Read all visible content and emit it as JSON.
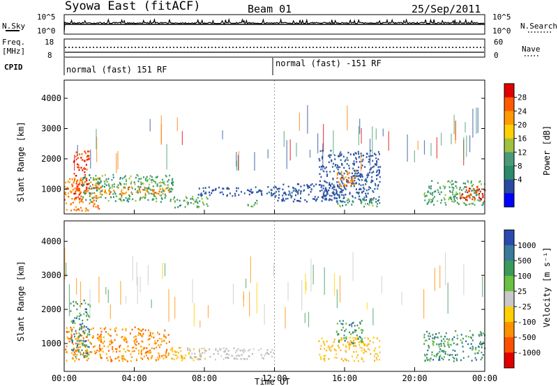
{
  "header": {
    "station": "Syowa East (fitACF)",
    "beam": "Beam 01",
    "date": "25/Sep/2011"
  },
  "status_panels": {
    "nsky_label": "N.Sky",
    "nsky_top": "10^5",
    "nsky_bottom": "10^0",
    "nsearch_label": "N.Search",
    "nsearch_top": "10^5",
    "nsearch_bottom": "10^0",
    "freq_label_1": "Freq.",
    "freq_label_2": "[MHz]",
    "freq_top": "18",
    "freq_bottom": "8",
    "nave_label": "Nave",
    "nave_top": "60",
    "nave_bottom": "0",
    "cpid_label": "CPID",
    "cpid_first": "normal (fast) 151 RF",
    "cpid_second": "normal (fast) -151 RF"
  },
  "chart_data": [
    {
      "type": "heatmap",
      "name": "Power panel",
      "ylabel": "Slant Range [km]",
      "yticks": [
        "1000",
        "2000",
        "3000",
        "4000"
      ],
      "ylim": [
        180,
        4600
      ],
      "xlim_hours": [
        0,
        24
      ],
      "xticks": [
        "00:00",
        "04:00",
        "08:00",
        "12:00",
        "16:00",
        "20:00",
        "00:00"
      ],
      "colorbar_label": "Power [dB]",
      "colorbar_ticks": [
        "28",
        "24",
        "20",
        "16",
        "12",
        "8",
        "4"
      ],
      "colorbar_colors": [
        "#e00000",
        "#ff5a00",
        "#ff9a00",
        "#ffd000",
        "#a0c040",
        "#4a9a7a",
        "#2a8a6a",
        "#2a4aa0",
        "#0000ff"
      ],
      "blobs": [
        {
          "t0": 0.0,
          "t1": 2.0,
          "r0": 300,
          "r1": 1400,
          "level": "orange"
        },
        {
          "t0": 0.5,
          "t1": 1.4,
          "r0": 700,
          "r1": 2300,
          "level": "red"
        },
        {
          "t0": 1.0,
          "t1": 6.2,
          "r0": 600,
          "r1": 1500,
          "level": "green"
        },
        {
          "t0": 2.0,
          "t1": 6.0,
          "r0": 850,
          "r1": 1100,
          "level": "orange"
        },
        {
          "t0": 6.2,
          "t1": 8.2,
          "r0": 400,
          "r1": 800,
          "level": "green"
        },
        {
          "t0": 7.5,
          "t1": 12.0,
          "r0": 800,
          "r1": 1100,
          "level": "blue"
        },
        {
          "t0": 10.3,
          "t1": 11.0,
          "r0": 450,
          "r1": 650,
          "level": "green"
        },
        {
          "t0": 12.0,
          "t1": 16.0,
          "r0": 600,
          "r1": 1200,
          "level": "blue"
        },
        {
          "t0": 14.5,
          "t1": 18.0,
          "r0": 600,
          "r1": 2300,
          "level": "blue"
        },
        {
          "t0": 15.5,
          "t1": 16.7,
          "r0": 1100,
          "r1": 1600,
          "level": "orange"
        },
        {
          "t0": 15.5,
          "t1": 18.0,
          "r0": 450,
          "r1": 700,
          "level": "green"
        },
        {
          "t0": 20.5,
          "t1": 24.0,
          "r0": 500,
          "r1": 1300,
          "level": "green"
        },
        {
          "t0": 22.5,
          "t1": 24.0,
          "r0": 600,
          "r1": 1100,
          "level": "red"
        }
      ]
    },
    {
      "type": "heatmap",
      "name": "Velocity panel",
      "ylabel": "Slant Range [km]",
      "yticks": [
        "1000",
        "2000",
        "3000",
        "4000"
      ],
      "ylim": [
        180,
        4600
      ],
      "xlim_hours": [
        0,
        24
      ],
      "xticks": [
        "00:00",
        "04:00",
        "08:00",
        "12:00",
        "16:00",
        "20:00",
        "00:00"
      ],
      "xlabel": "Time UT",
      "colorbar_label": "Velocity [m s⁻¹]",
      "colorbar_ticks": [
        "1000",
        "500",
        "100",
        "25",
        "-25",
        "-100",
        "-500",
        "-1000"
      ],
      "colorbar_colors": [
        "#2a4ab0",
        "#3a7a9a",
        "#3a9a5a",
        "#6ac040",
        "#c8c8c8",
        "#ffd000",
        "#ff9000",
        "#ff5000",
        "#e00000"
      ],
      "blobs": [
        {
          "t0": 0.0,
          "t1": 6.0,
          "r0": 500,
          "r1": 1500,
          "level": "orange"
        },
        {
          "t0": 0.3,
          "t1": 1.5,
          "r0": 600,
          "r1": 2300,
          "level": "green"
        },
        {
          "t0": 6.0,
          "t1": 8.0,
          "r0": 500,
          "r1": 900,
          "level": "yellow"
        },
        {
          "t0": 7.0,
          "t1": 12.0,
          "r0": 550,
          "r1": 900,
          "level": "grey"
        },
        {
          "t0": 14.5,
          "t1": 18.0,
          "r0": 500,
          "r1": 1200,
          "level": "yellow"
        },
        {
          "t0": 15.5,
          "t1": 17.0,
          "r0": 1000,
          "r1": 1700,
          "level": "green"
        },
        {
          "t0": 20.5,
          "t1": 24.0,
          "r0": 500,
          "r1": 1400,
          "level": "green"
        }
      ]
    }
  ]
}
